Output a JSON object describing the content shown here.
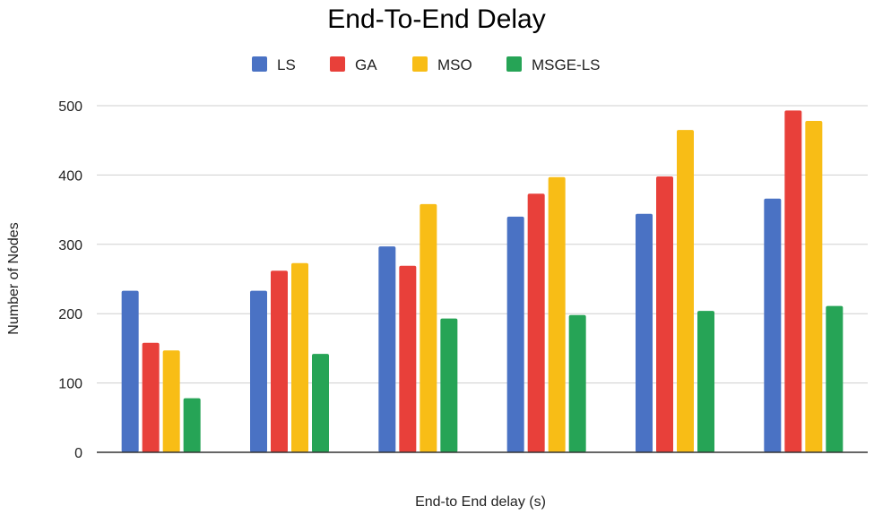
{
  "chart_data": {
    "type": "bar",
    "title": "End-To-End Delay",
    "xlabel": "End-to End delay (s)",
    "ylabel": "Number of Nodes",
    "categories": [
      "",
      "",
      "",
      "",
      "",
      ""
    ],
    "series": [
      {
        "name": "LS",
        "color": "#4a72c4",
        "values": [
          233,
          233,
          297,
          340,
          344,
          366
        ]
      },
      {
        "name": "GA",
        "color": "#e8403a",
        "values": [
          158,
          262,
          269,
          373,
          398,
          493
        ]
      },
      {
        "name": "MSO",
        "color": "#f8bd16",
        "values": [
          147,
          273,
          358,
          397,
          465,
          478
        ]
      },
      {
        "name": "MSGE-LS",
        "color": "#26a456",
        "values": [
          78,
          142,
          193,
          198,
          204,
          211
        ]
      }
    ],
    "ylim": [
      0,
      500
    ],
    "yticks": [
      0,
      100,
      200,
      300,
      400,
      500
    ],
    "grid": true,
    "legend": "top"
  }
}
